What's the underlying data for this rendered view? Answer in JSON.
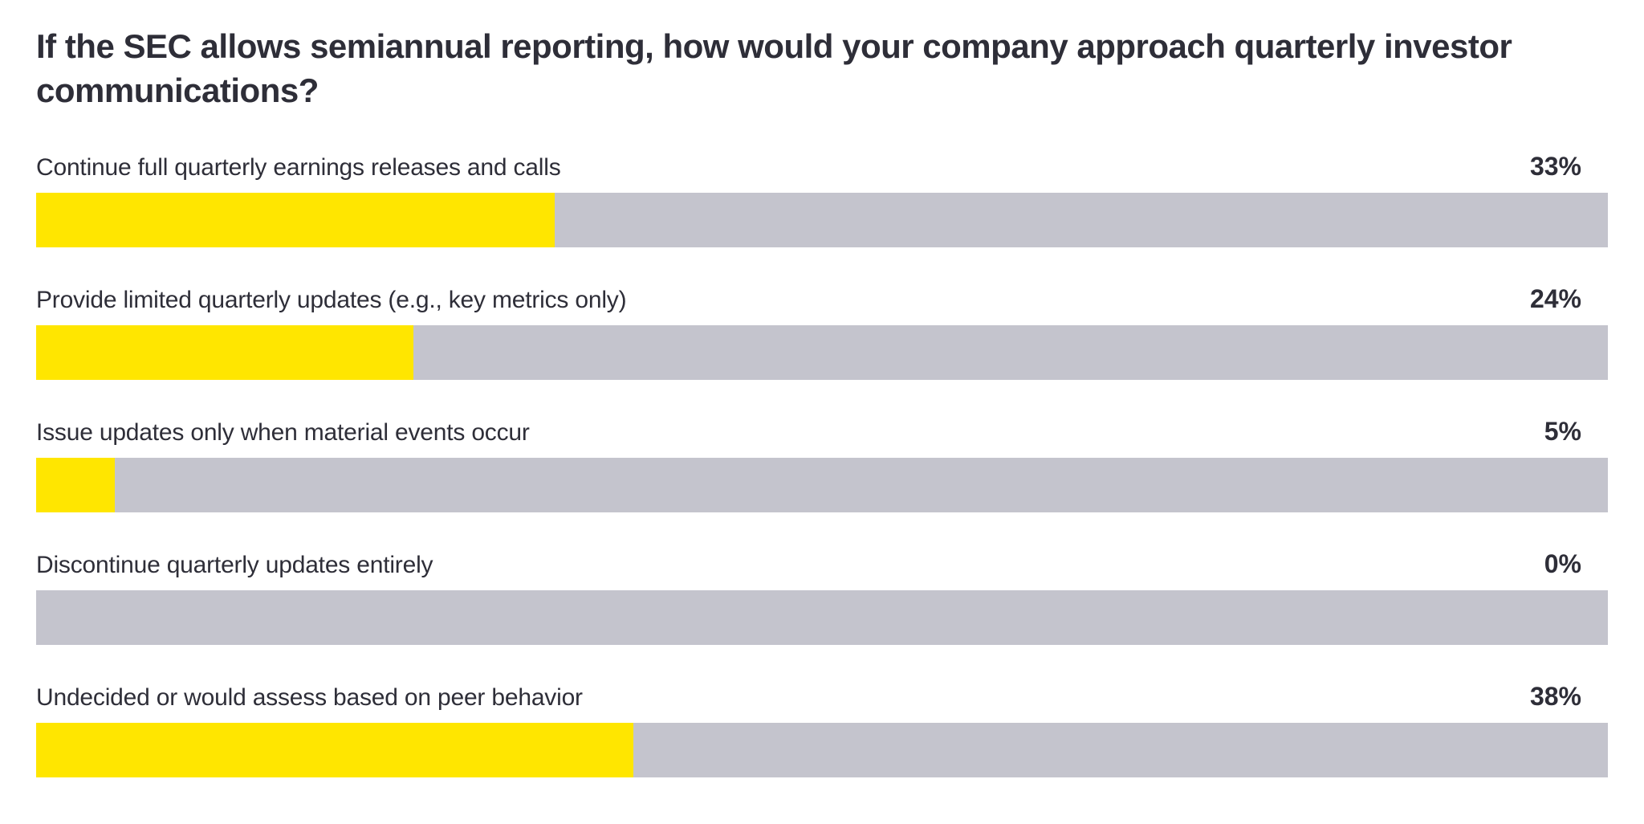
{
  "chart_data": {
    "type": "bar",
    "orientation": "horizontal",
    "title": "If the SEC allows semiannual reporting, how would your company approach quarterly investor communications?",
    "categories": [
      "Continue full quarterly earnings releases and calls",
      "Provide limited quarterly updates (e.g., key metrics only)",
      "Issue updates only when material events occur",
      "Discontinue quarterly updates entirely",
      "Undecided or would assess based on peer behavior"
    ],
    "values": [
      33,
      24,
      5,
      0,
      38
    ],
    "value_labels": [
      "33%",
      "24%",
      "5%",
      "0%",
      "38%"
    ],
    "unit": "%",
    "xlim": [
      0,
      100
    ],
    "xlabel": "",
    "ylabel": "",
    "grid": false,
    "legend": "none",
    "value_label_position": "right-end-above-bar"
  },
  "colors": {
    "bar_fill": "#FFE600",
    "bar_track": "#C4C4CD",
    "title_text": "#2E2E38",
    "label_text": "#2E2E38",
    "background": "#FFFFFF"
  }
}
